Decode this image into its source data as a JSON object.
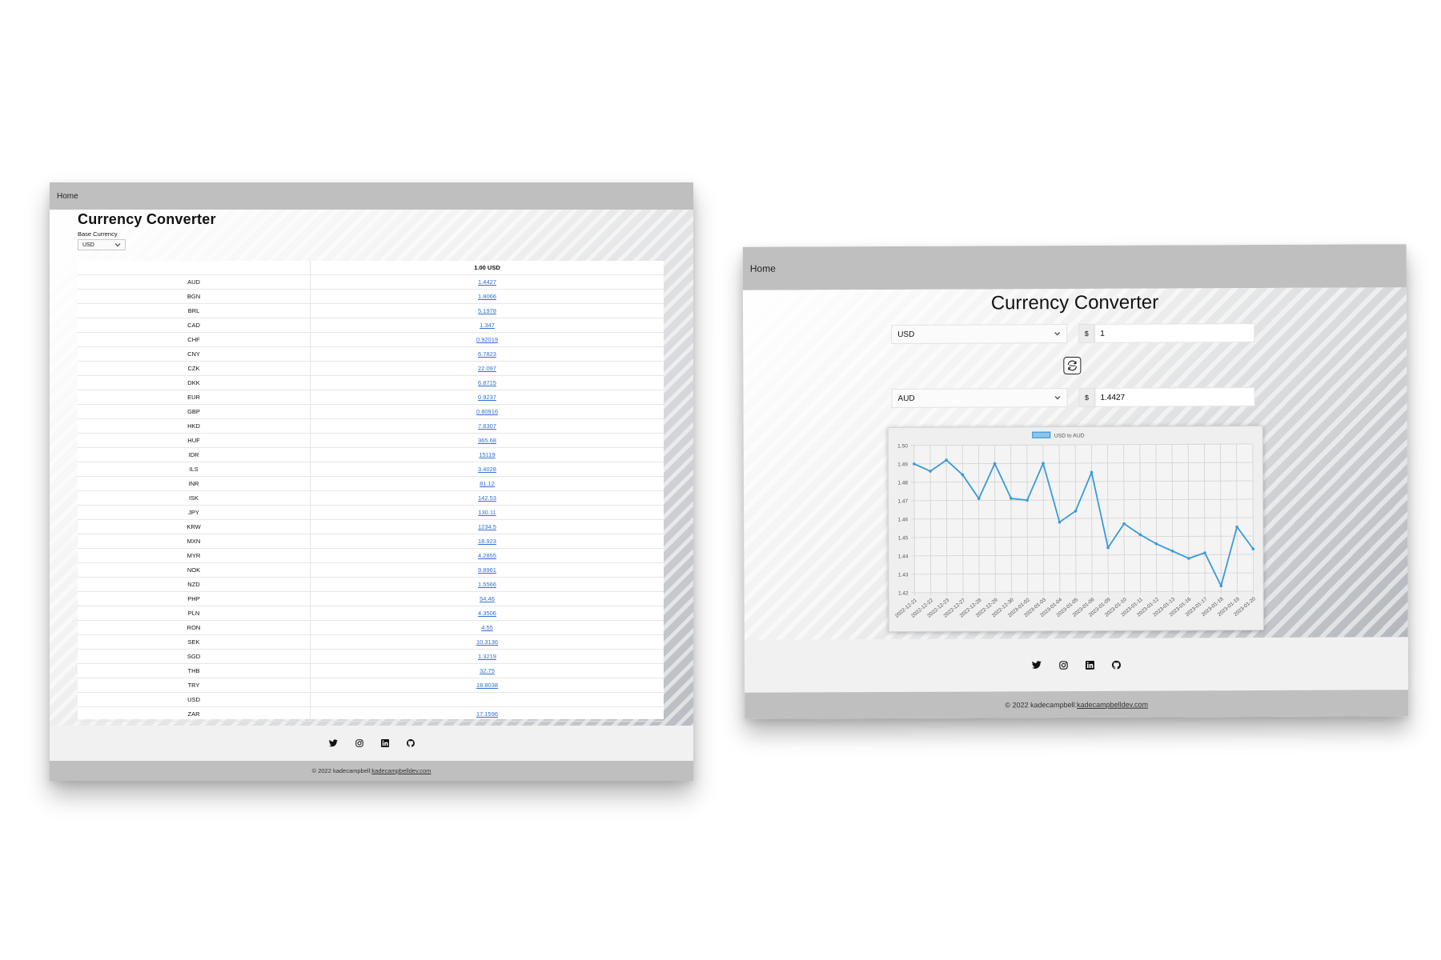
{
  "left_window": {
    "nav": {
      "home": "Home"
    },
    "title": "Currency Converter",
    "base_currency": {
      "label": "Base Currency",
      "selected": "USD"
    },
    "table": {
      "header_code": "",
      "header_amount": "1.00 USD",
      "rows": [
        {
          "code": "AUD",
          "rate": "1.4427"
        },
        {
          "code": "BGN",
          "rate": "1.8066"
        },
        {
          "code": "BRL",
          "rate": "5.1978"
        },
        {
          "code": "CAD",
          "rate": "1.347"
        },
        {
          "code": "CHF",
          "rate": "0.92019"
        },
        {
          "code": "CNY",
          "rate": "6.7823"
        },
        {
          "code": "CZK",
          "rate": "22.097"
        },
        {
          "code": "DKK",
          "rate": "6.8715"
        },
        {
          "code": "EUR",
          "rate": "0.9237"
        },
        {
          "code": "GBP",
          "rate": "0.80916"
        },
        {
          "code": "HKD",
          "rate": "7.8307"
        },
        {
          "code": "HUF",
          "rate": "365.68"
        },
        {
          "code": "IDR",
          "rate": "15119"
        },
        {
          "code": "ILS",
          "rate": "3.4028"
        },
        {
          "code": "INR",
          "rate": "81.12"
        },
        {
          "code": "ISK",
          "rate": "142.53"
        },
        {
          "code": "JPY",
          "rate": "130.11"
        },
        {
          "code": "KRW",
          "rate": "1234.5"
        },
        {
          "code": "MXN",
          "rate": "18.923"
        },
        {
          "code": "MYR",
          "rate": "4.2855"
        },
        {
          "code": "NOK",
          "rate": "9.8961"
        },
        {
          "code": "NZD",
          "rate": "1.5566"
        },
        {
          "code": "PHP",
          "rate": "54.46"
        },
        {
          "code": "PLN",
          "rate": "4.3506"
        },
        {
          "code": "RON",
          "rate": "4.55"
        },
        {
          "code": "SEK",
          "rate": "10.3136"
        },
        {
          "code": "SGD",
          "rate": "1.3219"
        },
        {
          "code": "THB",
          "rate": "32.75"
        },
        {
          "code": "TRY",
          "rate": "18.8038"
        },
        {
          "code": "USD",
          "rate": ""
        },
        {
          "code": "ZAR",
          "rate": "17.1596"
        }
      ]
    },
    "footer": {
      "copyright": "© 2022 kadecampbell:",
      "link": "kadecampbelldev.com"
    }
  },
  "right_window": {
    "nav": {
      "home": "Home"
    },
    "title": "Currency Converter",
    "from": {
      "currency": "USD",
      "prefix": "$",
      "amount": "1"
    },
    "to": {
      "currency": "AUD",
      "prefix": "$",
      "amount": "1.4427"
    },
    "footer": {
      "copyright": "© 2022 kadecampbell:",
      "link": "kadecampbelldev.com"
    }
  },
  "icons": [
    "twitter-icon",
    "instagram-icon",
    "linkedin-icon",
    "github-icon",
    "swap-icon",
    "chevron-down-icon"
  ],
  "colors": {
    "line": "#3a9ad9",
    "link": "#2f6fd6",
    "bar": "#bfbfbf"
  },
  "chart_data": {
    "type": "line",
    "title": "",
    "xlabel": "",
    "ylabel": "",
    "ylim": [
      1.42,
      1.5
    ],
    "yticks": [
      "1.50",
      "1.49",
      "1.48",
      "1.47",
      "1.46",
      "1.45",
      "1.44",
      "1.43",
      "1.42"
    ],
    "grid": true,
    "legend": "top-center",
    "x": [
      "2022-12-21",
      "2022-12-22",
      "2022-12-23",
      "2022-12-27",
      "2022-12-28",
      "2022-12-29",
      "2022-12-30",
      "2023-01-02",
      "2023-01-03",
      "2023-01-04",
      "2023-01-05",
      "2023-01-06",
      "2023-01-09",
      "2023-01-10",
      "2023-01-11",
      "2023-01-12",
      "2023-01-13",
      "2023-01-16",
      "2023-01-17",
      "2023-01-18",
      "2023-01-19",
      "2023-01-20"
    ],
    "series": [
      {
        "name": "USD to AUD",
        "values": [
          1.49,
          1.486,
          1.492,
          1.484,
          1.471,
          1.49,
          1.471,
          1.47,
          1.49,
          1.458,
          1.464,
          1.485,
          1.444,
          1.457,
          1.451,
          1.446,
          1.442,
          1.438,
          1.441,
          1.423,
          1.455,
          1.443
        ]
      }
    ]
  }
}
